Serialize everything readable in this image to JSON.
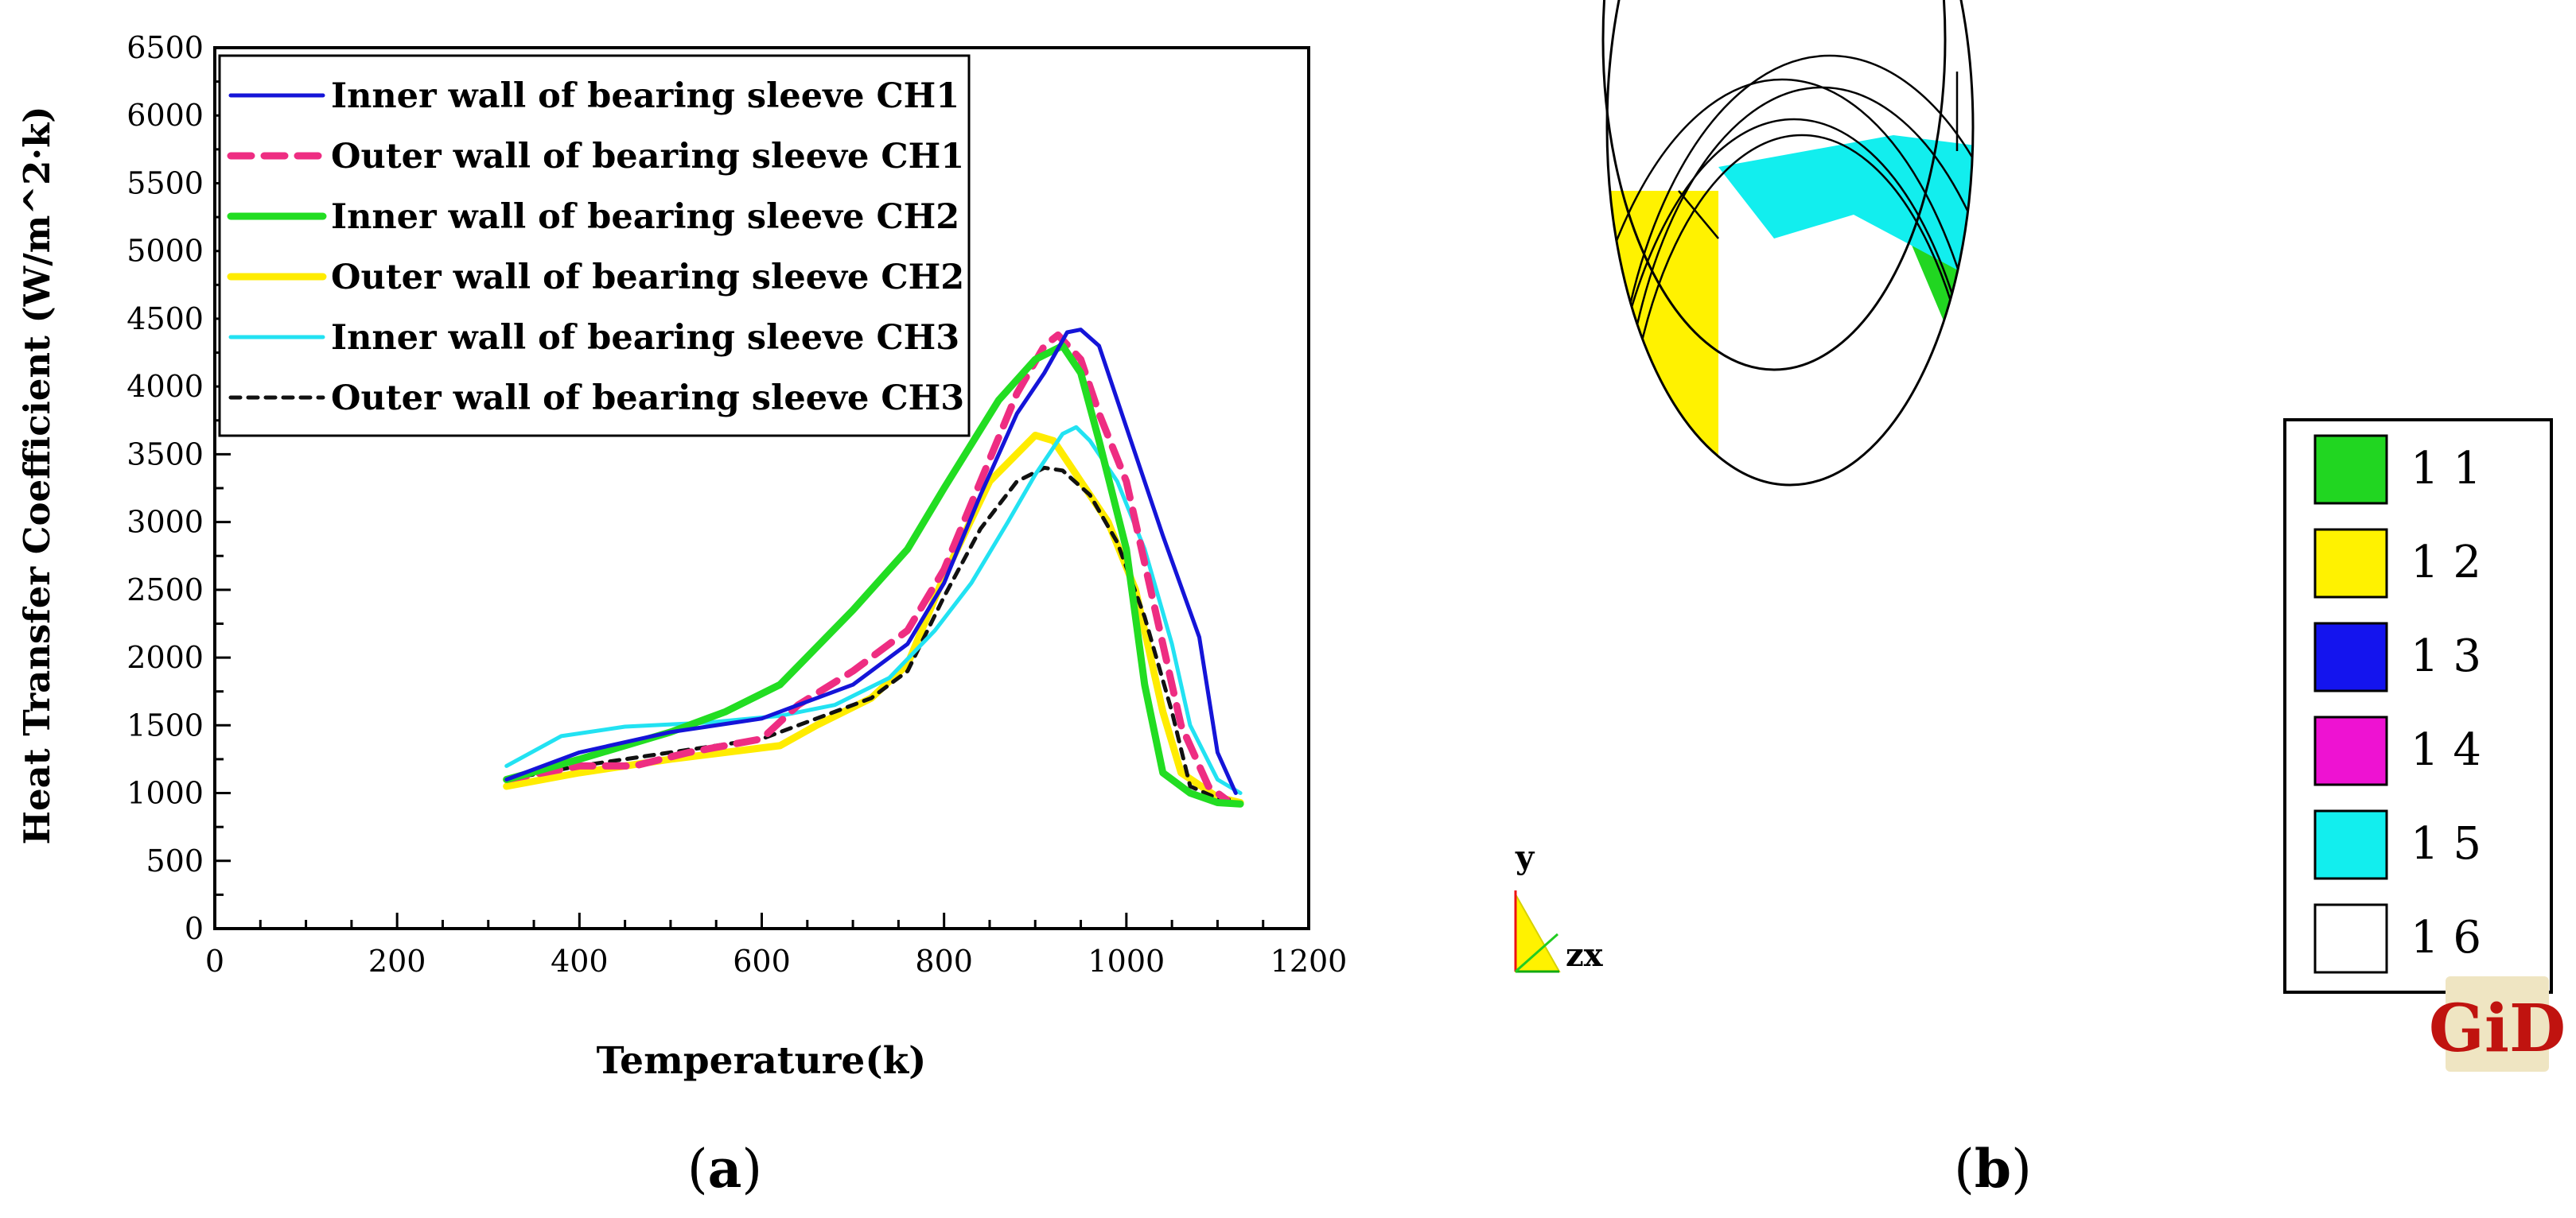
{
  "panel_a_label": "a",
  "panel_b_label": "b",
  "watermark": "GiD",
  "chart_data": [
    {
      "type": "line",
      "xlabel": "Temperature(k)",
      "ylabel": "Heat Transfer Coefficient (W/m^2·k)",
      "xlim": [
        0,
        1200
      ],
      "ylim": [
        0,
        6500
      ],
      "xticks": [
        0,
        200,
        400,
        600,
        800,
        1000,
        1200
      ],
      "yticks": [
        0,
        500,
        1000,
        1500,
        2000,
        2500,
        3000,
        3500,
        4000,
        4500,
        5000,
        5500,
        6000,
        6500
      ],
      "legend_position": "top-left",
      "series": [
        {
          "name": "Inner wall of bearing sleeve CH1",
          "color": "#1414d8",
          "style": "solid",
          "points": [
            [
              320,
              1100
            ],
            [
              400,
              1300
            ],
            [
              500,
              1450
            ],
            [
              600,
              1550
            ],
            [
              640,
              1650
            ],
            [
              700,
              1800
            ],
            [
              760,
              2100
            ],
            [
              800,
              2550
            ],
            [
              840,
              3200
            ],
            [
              880,
              3800
            ],
            [
              910,
              4100
            ],
            [
              935,
              4400
            ],
            [
              950,
              4420
            ],
            [
              970,
              4300
            ],
            [
              1000,
              3700
            ],
            [
              1040,
              2900
            ],
            [
              1080,
              2150
            ],
            [
              1100,
              1300
            ],
            [
              1120,
              1000
            ]
          ]
        },
        {
          "name": "Outer wall of bearing sleeve CH1",
          "color": "#ee2d82",
          "style": "dashed",
          "points": [
            [
              320,
              1100
            ],
            [
              400,
              1200
            ],
            [
              460,
              1200
            ],
            [
              520,
              1300
            ],
            [
              600,
              1400
            ],
            [
              640,
              1650
            ],
            [
              700,
              1900
            ],
            [
              760,
              2200
            ],
            [
              800,
              2650
            ],
            [
              840,
              3300
            ],
            [
              880,
              3950
            ],
            [
              910,
              4300
            ],
            [
              925,
              4380
            ],
            [
              950,
              4200
            ],
            [
              970,
              3800
            ],
            [
              1000,
              3300
            ],
            [
              1030,
              2400
            ],
            [
              1060,
              1500
            ],
            [
              1090,
              1050
            ],
            [
              1110,
              950
            ]
          ]
        },
        {
          "name": "Inner wall of bearing sleeve CH2",
          "color": "#22dd22",
          "style": "solid",
          "points": [
            [
              320,
              1100
            ],
            [
              400,
              1250
            ],
            [
              500,
              1450
            ],
            [
              560,
              1600
            ],
            [
              620,
              1800
            ],
            [
              700,
              2350
            ],
            [
              760,
              2800
            ],
            [
              800,
              3250
            ],
            [
              860,
              3900
            ],
            [
              900,
              4200
            ],
            [
              930,
              4300
            ],
            [
              950,
              4100
            ],
            [
              970,
              3600
            ],
            [
              1000,
              2800
            ],
            [
              1020,
              1800
            ],
            [
              1040,
              1150
            ],
            [
              1070,
              1000
            ],
            [
              1100,
              930
            ],
            [
              1125,
              920
            ]
          ]
        },
        {
          "name": "Outer wall of bearing sleeve CH2",
          "color": "#ffec00",
          "style": "solid",
          "points": [
            [
              320,
              1050
            ],
            [
              400,
              1150
            ],
            [
              500,
              1250
            ],
            [
              620,
              1350
            ],
            [
              660,
              1500
            ],
            [
              720,
              1700
            ],
            [
              760,
              1950
            ],
            [
              800,
              2600
            ],
            [
              850,
              3300
            ],
            [
              900,
              3640
            ],
            [
              920,
              3600
            ],
            [
              950,
              3300
            ],
            [
              980,
              3000
            ],
            [
              1010,
              2500
            ],
            [
              1040,
              1600
            ],
            [
              1060,
              1150
            ],
            [
              1100,
              970
            ],
            [
              1125,
              930
            ]
          ]
        },
        {
          "name": "Inner wall of bearing sleeve CH3",
          "color": "#22e2f2",
          "style": "solid",
          "points": [
            [
              320,
              1200
            ],
            [
              380,
              1420
            ],
            [
              450,
              1490
            ],
            [
              540,
              1520
            ],
            [
              620,
              1570
            ],
            [
              680,
              1650
            ],
            [
              740,
              1850
            ],
            [
              790,
              2200
            ],
            [
              830,
              2550
            ],
            [
              870,
              3000
            ],
            [
              900,
              3350
            ],
            [
              930,
              3650
            ],
            [
              945,
              3700
            ],
            [
              960,
              3600
            ],
            [
              990,
              3300
            ],
            [
              1020,
              2800
            ],
            [
              1050,
              2100
            ],
            [
              1070,
              1500
            ],
            [
              1100,
              1100
            ],
            [
              1125,
              1000
            ]
          ]
        },
        {
          "name": "Outer wall of bearing sleeve CH3",
          "color": "#111111",
          "style": "dotted",
          "points": [
            [
              320,
              1100
            ],
            [
              400,
              1200
            ],
            [
              500,
              1300
            ],
            [
              600,
              1400
            ],
            [
              660,
              1550
            ],
            [
              720,
              1700
            ],
            [
              760,
              1900
            ],
            [
              800,
              2450
            ],
            [
              840,
              2950
            ],
            [
              880,
              3300
            ],
            [
              910,
              3400
            ],
            [
              930,
              3380
            ],
            [
              960,
              3200
            ],
            [
              990,
              2850
            ],
            [
              1020,
              2300
            ],
            [
              1050,
              1600
            ],
            [
              1070,
              1050
            ],
            [
              1100,
              960
            ],
            [
              1120,
              950
            ]
          ]
        }
      ]
    }
  ],
  "contour_legend": {
    "items": [
      {
        "label": "1 1",
        "color": "#21d621"
      },
      {
        "label": "1 2",
        "color": "#fff200"
      },
      {
        "label": "1 3",
        "color": "#1414ee"
      },
      {
        "label": "1 4",
        "color": "#ee12d2"
      },
      {
        "label": "1 5",
        "color": "#12eeee"
      },
      {
        "label": "1 6",
        "color": "#ffffff"
      }
    ]
  },
  "axis_triad": {
    "y": "y",
    "zx": "zx"
  }
}
